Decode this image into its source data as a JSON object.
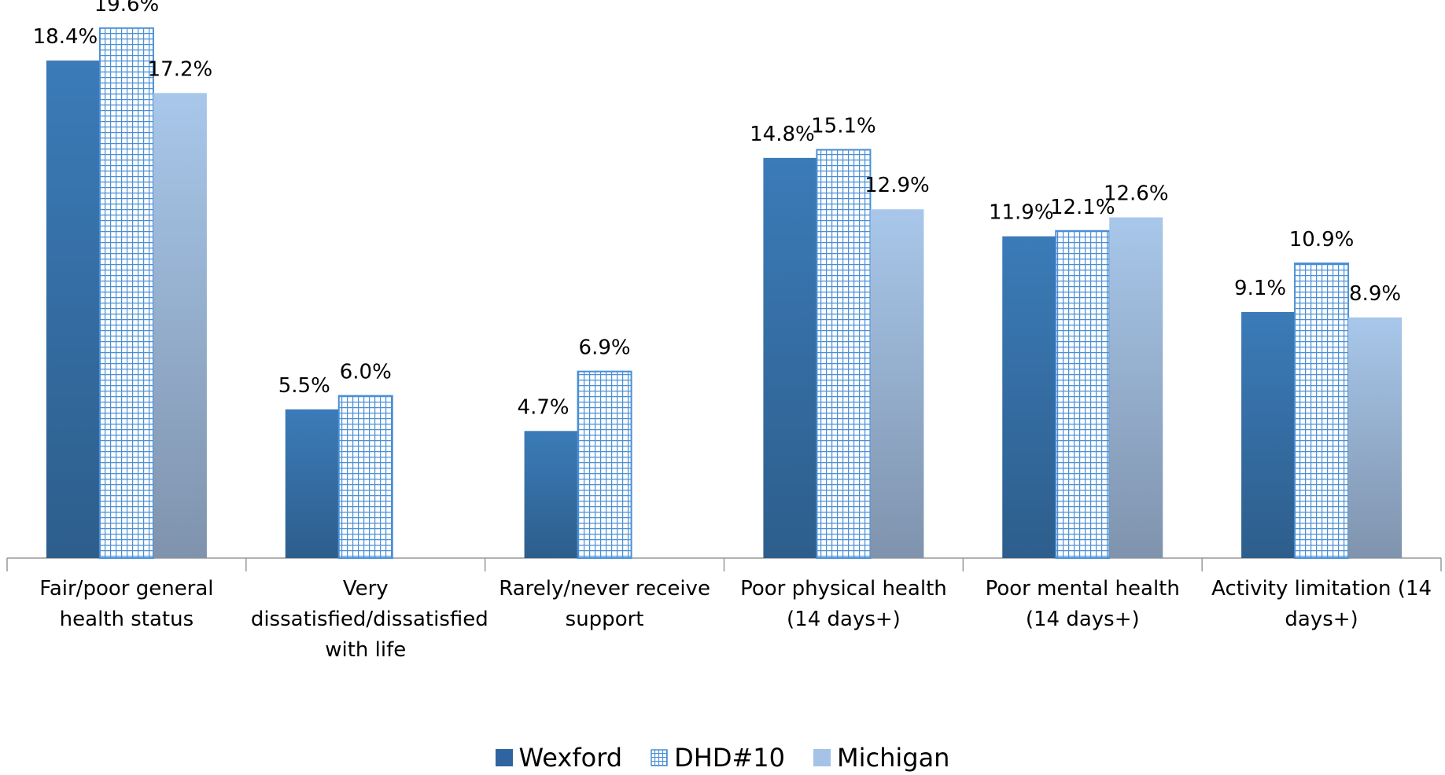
{
  "chart_data": {
    "type": "bar",
    "categories": [
      "Fair/poor general health status",
      "Very dissatisfied/dissatisfied with life",
      "Rarely/never receive support",
      "Poor physical health (14 days+)",
      "Poor mental health (14 days+)",
      "Activity limitation (14 days+)"
    ],
    "series": [
      {
        "name": "Wexford",
        "color": "#3b7bb8",
        "values": [
          18.4,
          5.5,
          4.7,
          14.8,
          11.9,
          9.1
        ],
        "value_labels": [
          "18.4%",
          "5.5%",
          "4.7%",
          "14.8%",
          "11.9%",
          "9.1%"
        ]
      },
      {
        "name": "DHD#10",
        "color": "#4a8fd6",
        "values": [
          19.6,
          6.0,
          6.9,
          15.1,
          12.1,
          10.9
        ],
        "value_labels": [
          "19.6%",
          "6.0%",
          "6.9%",
          "15.1%",
          "12.1%",
          "10.9%"
        ]
      },
      {
        "name": "Michigan",
        "color": "#a5c3e6",
        "values": [
          17.2,
          null,
          null,
          12.9,
          12.6,
          8.9
        ],
        "value_labels": [
          "17.2%",
          null,
          null,
          "12.9%",
          "12.6%",
          "8.9%"
        ]
      }
    ],
    "ylim": [
      0,
      20
    ],
    "legend": "bottom"
  }
}
